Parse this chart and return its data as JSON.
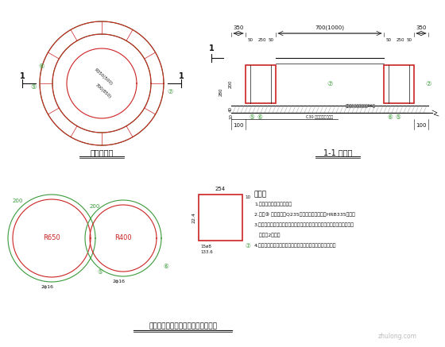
{
  "bg_color": "#ffffff",
  "gc": "#3a9a3a",
  "rc": "#cc2222",
  "bk": "#111111",
  "gy": "#888888",
  "title_plan": "井圈平面图",
  "title_section": "1-1 剪面图",
  "title_bottom": "车道下排水检查井井圈加强做法详图",
  "notes_title": "说明：",
  "note1": "1.本图尺寸单位均为毫米。",
  "note2": "2.本图③ 带圈梁采用Q235钙栏，其他钙筋采用HRB335钙筋。",
  "note3": "3.带圈梁保护层厚度应保证主筋中心与带圈梁边缘距离，主横筋保护层厚度",
  "note3b": "   不小于2厘米。",
  "note4": "4.本图适用于车道下当土层上面有雨棆及上覆土堆放的情况。"
}
